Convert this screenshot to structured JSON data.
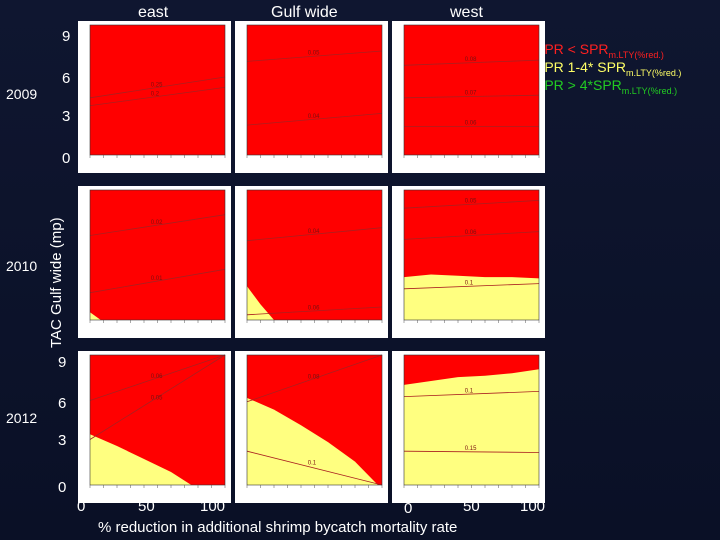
{
  "labels": {
    "col_titles": [
      "east",
      "Gulf wide",
      "west"
    ],
    "years": [
      "2009",
      "2010",
      "2012"
    ],
    "y_axis_label": "TAC Gulf wide (mp)",
    "x_axis_label": "% reduction in additional shrimp bycatch mortality rate",
    "y_ticks_row1": [
      "9",
      "6",
      "3",
      "0"
    ],
    "y_ticks_row3": [
      "9",
      "6",
      "3",
      "0"
    ],
    "x_ticks": [
      "0",
      "50",
      "100"
    ],
    "legend": [
      {
        "main": "SPR < SPR",
        "sub": "m.LTY(%red.)",
        "color": "#ff2020"
      },
      {
        "main": "SPR 1-4* SPR",
        "sub": "m.LTY(%red.)",
        "color": "#ffff66"
      },
      {
        "main": "SPR > 4*SPR",
        "sub": "m.LTY(%red.)",
        "color": "#22cc22"
      }
    ]
  },
  "colors": {
    "red_region": "#ff0000",
    "yellow_region": "#ffff80",
    "contour": "#aa2020",
    "panel_bg": "#ffffff"
  },
  "chart_data": {
    "type": "heatmap",
    "title": "",
    "xlabel": "% reduction in additional shrimp bycatch mortality rate",
    "ylabel": "TAC Gulf wide (mp)",
    "xlim": [
      0,
      100
    ],
    "ylim": [
      0,
      10
    ],
    "panels": [
      {
        "row": "2009",
        "col": "east",
        "contours": [
          {
            "level": "0.2",
            "y0": 3.8,
            "y1": 5.2
          },
          {
            "level": "0.25",
            "y0": 4.4,
            "y1": 6.0
          }
        ],
        "yellow_boundary": []
      },
      {
        "row": "2009",
        "col": "Gulf wide",
        "contours": [
          {
            "level": "0.04",
            "y0": 2.3,
            "y1": 3.2
          },
          {
            "level": "0.05",
            "y0": 7.2,
            "y1": 8.0
          }
        ],
        "yellow_boundary": []
      },
      {
        "row": "2009",
        "col": "west",
        "contours": [
          {
            "level": "0.06",
            "y0": 2.2,
            "y1": 2.2
          },
          {
            "level": "0.07",
            "y0": 4.4,
            "y1": 4.6
          },
          {
            "level": "0.08",
            "y0": 6.9,
            "y1": 7.3
          }
        ],
        "yellow_boundary": []
      },
      {
        "row": "2010",
        "col": "east",
        "contours": [
          {
            "level": "0.01",
            "y0": 2.1,
            "y1": 3.9
          },
          {
            "level": "0.02",
            "y0": 6.5,
            "y1": 8.1
          }
        ],
        "yellow_boundary": [
          [
            0,
            0.6
          ],
          [
            8,
            0
          ]
        ]
      },
      {
        "row": "2010",
        "col": "Gulf wide",
        "contours": [
          {
            "level": "0.04",
            "y0": 6.1,
            "y1": 7.1
          },
          {
            "level": "0.06",
            "y0": 0.4,
            "y1": 1.0
          }
        ],
        "yellow_boundary": [
          [
            0,
            2.6
          ],
          [
            10,
            1.2
          ],
          [
            20,
            0
          ]
        ]
      },
      {
        "row": "2010",
        "col": "west",
        "contours": [
          {
            "level": "0.06",
            "y0": 6.2,
            "y1": 6.8
          },
          {
            "level": "0.05",
            "y0": 8.6,
            "y1": 9.2
          },
          {
            "level": "0.1",
            "y0": 2.4,
            "y1": 2.8
          }
        ],
        "yellow_boundary": [
          [
            0,
            3.3
          ],
          [
            20,
            3.5
          ],
          [
            40,
            3.4
          ],
          [
            60,
            3.3
          ],
          [
            80,
            3.3
          ],
          [
            100,
            3.2
          ]
        ]
      },
      {
        "row": "2012",
        "col": "east",
        "contours": [
          {
            "level": "0.05",
            "y0": 3.5,
            "y1": 10
          },
          {
            "level": "0.06",
            "y0": 6.5,
            "y1": 10
          }
        ],
        "yellow_boundary": [
          [
            0,
            3.9
          ],
          [
            20,
            3.0
          ],
          [
            40,
            2.0
          ],
          [
            60,
            1.0
          ],
          [
            75,
            0
          ]
        ]
      },
      {
        "row": "2012",
        "col": "Gulf wide",
        "contours": [
          {
            "level": "0.08",
            "y0": 6.4,
            "y1": 10
          },
          {
            "level": "0.1",
            "y0": 2.6,
            "y1": 0
          }
        ],
        "yellow_boundary": [
          [
            0,
            6.7
          ],
          [
            20,
            5.8
          ],
          [
            40,
            4.6
          ],
          [
            60,
            3.3
          ],
          [
            80,
            1.8
          ],
          [
            97,
            0
          ]
        ]
      },
      {
        "row": "2012",
        "col": "west",
        "contours": [
          {
            "level": "0.1",
            "y0": 6.8,
            "y1": 7.2
          },
          {
            "level": "0.15",
            "y0": 2.6,
            "y1": 2.5
          }
        ],
        "yellow_boundary": [
          [
            0,
            7.7
          ],
          [
            20,
            8.0
          ],
          [
            40,
            8.3
          ],
          [
            60,
            8.4
          ],
          [
            80,
            8.6
          ],
          [
            100,
            8.9
          ]
        ]
      }
    ]
  }
}
